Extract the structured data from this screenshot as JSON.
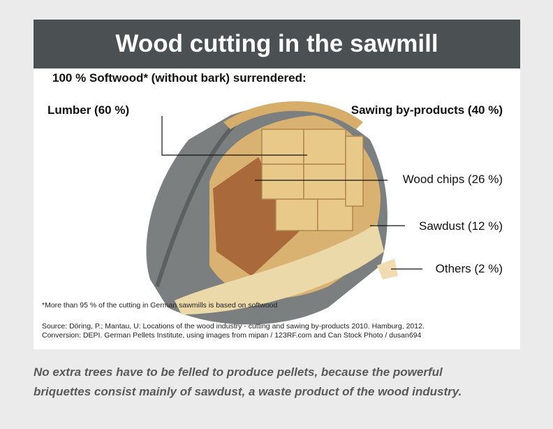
{
  "title": "Wood cutting in the sawmill",
  "subtitle": "100 % Softwood* (without bark) surrendered:",
  "labels": {
    "lumber": "Lumber (60 %)",
    "by_products": "Sawing by-products (40 %)",
    "wood_chips": "Wood chips (26 %)",
    "sawdust": "Sawdust (12 %)",
    "others": "Others (2 %)"
  },
  "footnote": "*More than 95 % of the cutting in German sawmills is based on softwood",
  "source": [
    "Source: Döring, P.; Mantau, U: Locations of the wood industry - cutting and sawing by-products 2010. Hamburg, 2012.",
    "Conversion: DEPI. German Pellets Institute, using images from mipan / 123RF.com and Can Stock Photo / dusan694"
  ],
  "caption": [
    "No extra trees have to be felled to produce pellets, because the powerful",
    "briquettes consist mainly of sawdust, a waste product of the wood industry."
  ]
}
